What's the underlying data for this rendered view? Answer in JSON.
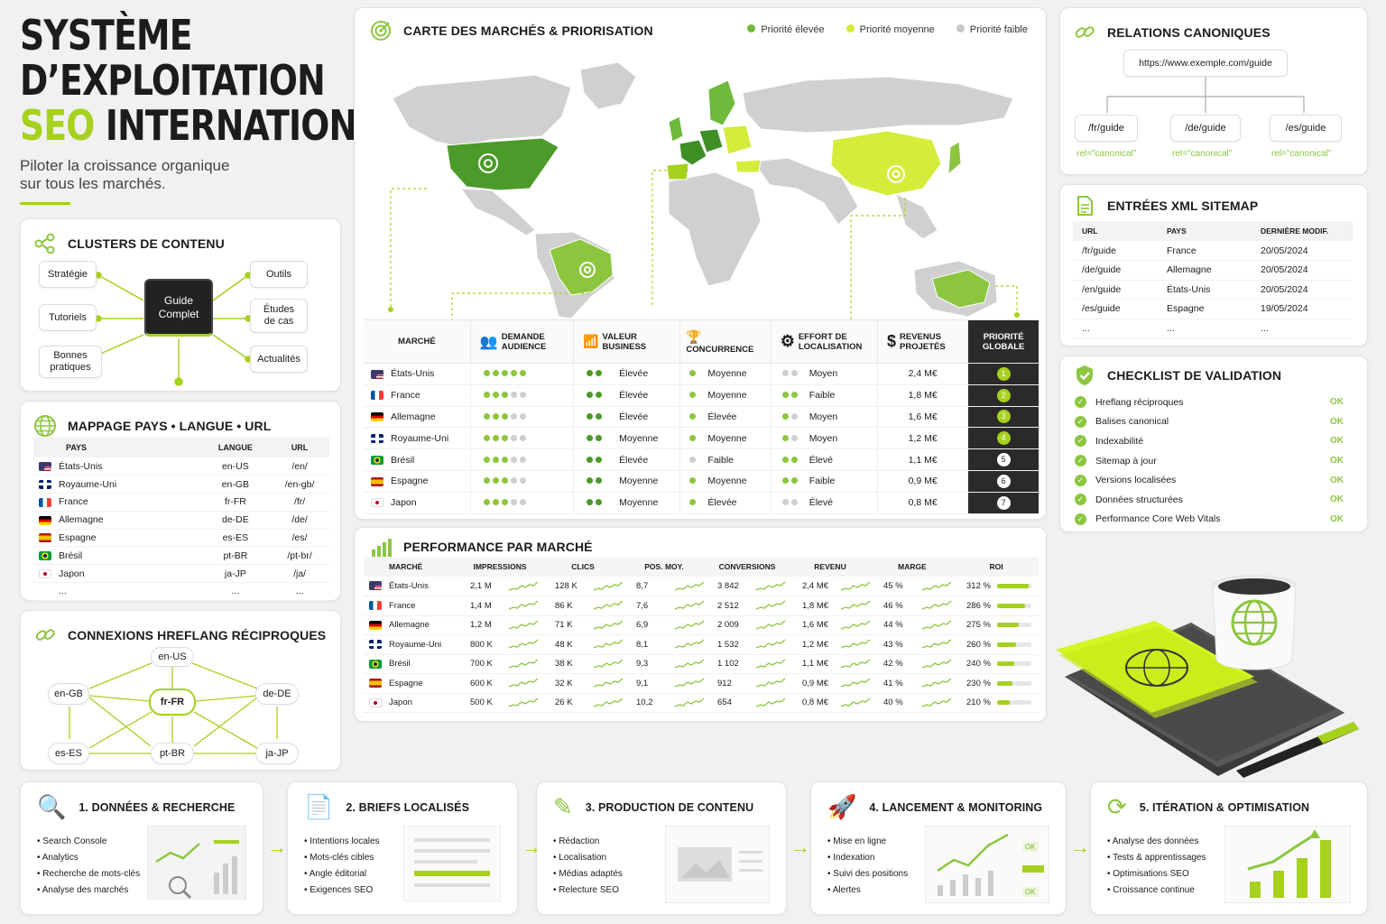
{
  "hero": {
    "line1": "SYSTÈME",
    "line2": "D’EXPLOITATION",
    "line3_accent": "SEO",
    "line3_rest": "INTERNATIONAL",
    "subtitle_1": "Piloter la croissance organique",
    "subtitle_2": "sur tous les marchés."
  },
  "clusters": {
    "title": "CLUSTERS DE CONTENU",
    "center": "Guide Complet",
    "left": [
      "Stratégie",
      "Tutoriels",
      "Bonnes pratiques"
    ],
    "right": [
      "Outils",
      "Études de cas",
      "Actualités"
    ]
  },
  "mapping": {
    "title": "MAPPAGE PAYS • LANGUE • URL",
    "headers": [
      "PAYS",
      "LANGUE",
      "URL"
    ],
    "rows": [
      {
        "flag": "us",
        "country": "États-Unis",
        "lang": "en-US",
        "url": "/en/"
      },
      {
        "flag": "gb",
        "country": "Royaume-Uni",
        "lang": "en-GB",
        "url": "/en-gb/"
      },
      {
        "flag": "fr",
        "country": "France",
        "lang": "fr-FR",
        "url": "/fr/"
      },
      {
        "flag": "de",
        "country": "Allemagne",
        "lang": "de-DE",
        "url": "/de/"
      },
      {
        "flag": "es",
        "country": "Espagne",
        "lang": "es-ES",
        "url": "/es/"
      },
      {
        "flag": "br",
        "country": "Brésil",
        "lang": "pt-BR",
        "url": "/pt-br/"
      },
      {
        "flag": "jp",
        "country": "Japon",
        "lang": "ja-JP",
        "url": "/ja/"
      },
      {
        "flag": "",
        "country": "...",
        "lang": "...",
        "url": "..."
      }
    ]
  },
  "hreflang": {
    "title": "CONNEXIONS HREFLANG RÉCIPROQUES",
    "nodes": [
      "en-US",
      "en-GB",
      "fr-FR",
      "de-DE",
      "es-ES",
      "pt-BR",
      "ja-JP"
    ]
  },
  "map": {
    "title": "CARTE DES MARCHÉS & PRIORISATION",
    "legend": [
      "Priorité élevée",
      "Priorité moyenne",
      "Priorité faible"
    ],
    "legend_colors": [
      "#6fb93b",
      "#d4ec3a",
      "#c8c8c8"
    ]
  },
  "priority": {
    "headers": [
      "MARCHÉ",
      "DEMANDE AUDIENCE",
      "VALEUR BUSINESS",
      "CONCURRENCE",
      "EFFORT DE LOCALISATION",
      "REVENUS PROJETÉS",
      "PRIORITÉ GLOBALE"
    ],
    "rows": [
      {
        "flag": "us",
        "market": "États-Unis",
        "demand": 5,
        "value_dots": 2,
        "value": "Élevée",
        "comp_dots": 1,
        "comp": "Moyenne",
        "effort_dots": 0,
        "effort": "Moyen",
        "rev": "2,4 M€",
        "rank": "1"
      },
      {
        "flag": "fr",
        "market": "France",
        "demand": 3,
        "value_dots": 2,
        "value": "Élevée",
        "comp_dots": 1,
        "comp": "Moyenne",
        "effort_dots": 2,
        "effort": "Faible",
        "rev": "1,8 M€",
        "rank": "2"
      },
      {
        "flag": "de",
        "market": "Allemagne",
        "demand": 3,
        "value_dots": 2,
        "value": "Élevée",
        "comp_dots": 1,
        "comp": "Élevée",
        "effort_dots": 1,
        "effort": "Moyen",
        "rev": "1,6 M€",
        "rank": "3"
      },
      {
        "flag": "gb",
        "market": "Royaume-Uni",
        "demand": 3,
        "value_dots": 2,
        "value": "Moyenne",
        "comp_dots": 1,
        "comp": "Moyenne",
        "effort_dots": 1,
        "effort": "Moyen",
        "rev": "1,2 M€",
        "rank": "4"
      },
      {
        "flag": "br",
        "market": "Brésil",
        "demand": 3,
        "value_dots": 2,
        "value": "Élevée",
        "comp_dots": 0,
        "comp": "Faible",
        "effort_dots": 2,
        "effort": "Élevé",
        "rev": "1,1 M€",
        "rank": "5"
      },
      {
        "flag": "es",
        "market": "Espagne",
        "demand": 3,
        "value_dots": 2,
        "value": "Moyenne",
        "comp_dots": 1,
        "comp": "Moyenne",
        "effort_dots": 2,
        "effort": "Faible",
        "rev": "0,9 M€",
        "rank": "6"
      },
      {
        "flag": "jp",
        "market": "Japon",
        "demand": 3,
        "value_dots": 2,
        "value": "Moyenne",
        "comp_dots": 1,
        "comp": "Élevée",
        "effort_dots": 0,
        "effort": "Élevé",
        "rev": "0,8 M€",
        "rank": "7"
      }
    ]
  },
  "performance": {
    "title": "PERFORMANCE PAR MARCHÉ",
    "headers": [
      "MARCHÉ",
      "IMPRESSIONS",
      "CLICS",
      "POS. MOY.",
      "CONVERSIONS",
      "REVENU",
      "MARGE",
      "ROI"
    ],
    "rows": [
      {
        "flag": "us",
        "market": "États-Unis",
        "imp": "2,1 M",
        "clics": "128 K",
        "pos": "8,7",
        "conv": "3 842",
        "rev": "2,4 M€",
        "marge": "45 %",
        "roi": "312 %",
        "roi_level": 0.92
      },
      {
        "flag": "fr",
        "market": "France",
        "imp": "1,4 M",
        "clics": "86 K",
        "pos": "7,6",
        "conv": "2 512",
        "rev": "1,8 M€",
        "marge": "46 %",
        "roi": "286 %",
        "roi_level": 0.82
      },
      {
        "flag": "de",
        "market": "Allemagne",
        "imp": "1,2 M",
        "clics": "71 K",
        "pos": "6,9",
        "conv": "2 009",
        "rev": "1,6 M€",
        "marge": "44 %",
        "roi": "275 %",
        "roi_level": 0.62
      },
      {
        "flag": "gb",
        "market": "Royaume-Uni",
        "imp": "800 K",
        "clics": "48 K",
        "pos": "8,1",
        "conv": "1 532",
        "rev": "1,2 M€",
        "marge": "43 %",
        "roi": "260 %",
        "roi_level": 0.55
      },
      {
        "flag": "br",
        "market": "Brésil",
        "imp": "700 K",
        "clics": "38 K",
        "pos": "9,3",
        "conv": "1 102",
        "rev": "1,1 M€",
        "marge": "42 %",
        "roi": "240 %",
        "roi_level": 0.5
      },
      {
        "flag": "es",
        "market": "Espagne",
        "imp": "600 K",
        "clics": "32 K",
        "pos": "9,1",
        "conv": "912",
        "rev": "0,9 M€",
        "marge": "41 %",
        "roi": "230 %",
        "roi_level": 0.45
      },
      {
        "flag": "jp",
        "market": "Japon",
        "imp": "500 K",
        "clics": "26 K",
        "pos": "10,2",
        "conv": "654",
        "rev": "0,8 M€",
        "marge": "40 %",
        "roi": "210 %",
        "roi_level": 0.38
      }
    ]
  },
  "canonical": {
    "title": "RELATIONS CANONIQUES",
    "url": "https://www.exemple.com/guide",
    "children": [
      "/fr/guide",
      "/de/guide",
      "/es/guide"
    ],
    "rel": "rel=\"canonical\""
  },
  "sitemap": {
    "title": "ENTRÉES XML SITEMAP",
    "headers": [
      "URL",
      "PAYS",
      "DERNIÈRE MODIF."
    ],
    "rows": [
      {
        "url": "/fr/guide",
        "pays": "France",
        "date": "20/05/2024"
      },
      {
        "url": "/de/guide",
        "pays": "Allemagne",
        "date": "20/05/2024"
      },
      {
        "url": "/en/guide",
        "pays": "États-Unis",
        "date": "20/05/2024"
      },
      {
        "url": "/es/guide",
        "pays": "Espagne",
        "date": "19/05/2024"
      },
      {
        "url": "...",
        "pays": "...",
        "date": "..."
      }
    ]
  },
  "checklist": {
    "title": "CHECKLIST DE VALIDATION",
    "items": [
      "Hreflang réciproques",
      "Balises canonical",
      "Indexabilité",
      "Sitemap à jour",
      "Versions localisées",
      "Données structurées",
      "Performance Core Web Vitals"
    ],
    "status": "OK"
  },
  "steps": [
    {
      "title": "1. DONNÉES & RECHERCHE",
      "items": [
        "Search Console",
        "Analytics",
        "Recherche de mots-clés",
        "Analyse des marchés"
      ]
    },
    {
      "title": "2. BRIEFS LOCALISÉS",
      "items": [
        "Intentions locales",
        "Mots-clés cibles",
        "Angle éditorial",
        "Exigences SEO"
      ]
    },
    {
      "title": "3. PRODUCTION DE CONTENU",
      "items": [
        "Rédaction",
        "Localisation",
        "Médias adaptés",
        "Relecture SEO"
      ]
    },
    {
      "title": "4. LANCEMENT & MONITORING",
      "items": [
        "Mise en ligne",
        "Indexation",
        "Suivi des positions",
        "Alertes"
      ],
      "badges": [
        "OK",
        "OK"
      ]
    },
    {
      "title": "5. ITÉRATION & OPTIMISATION",
      "items": [
        "Analyse des données",
        "Tests & apprentissages",
        "Optimisations SEO",
        "Croissance continue"
      ]
    }
  ]
}
